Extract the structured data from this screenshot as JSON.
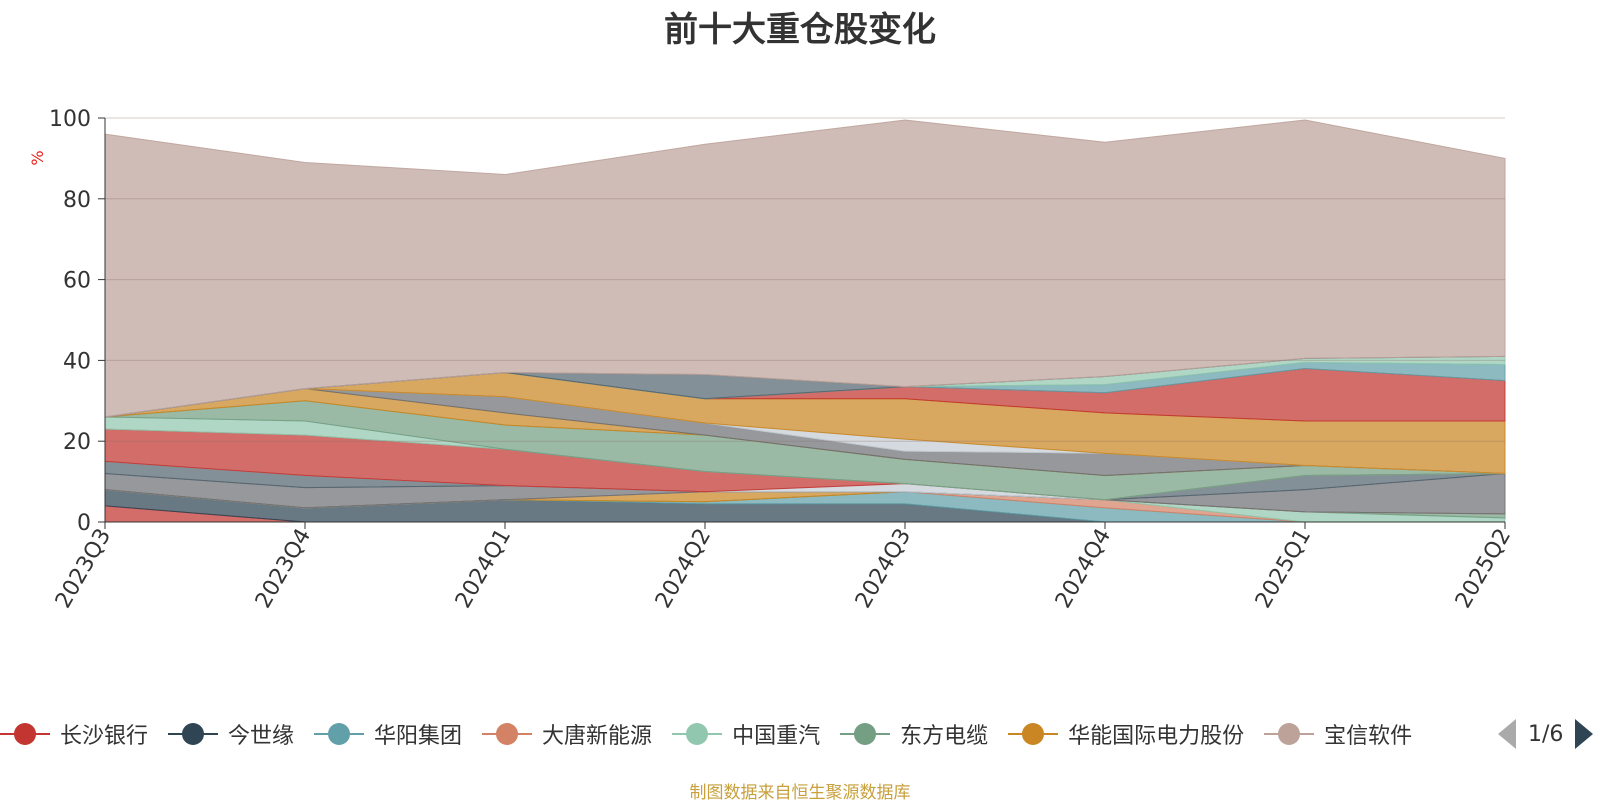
{
  "chart_data": {
    "type": "area",
    "stacked": true,
    "title": "前十大重仓股变化",
    "ylabel": "%",
    "ylim": [
      0,
      100
    ],
    "yticks": [
      0,
      20,
      40,
      60,
      80,
      100
    ],
    "x": [
      "2023Q3",
      "2023Q4",
      "2024Q1",
      "2024Q2",
      "2024Q3",
      "2024Q4",
      "2025Q1",
      "2025Q2"
    ],
    "series": [
      {
        "name": "长沙银行",
        "color": "#c23531",
        "values": [
          4,
          0,
          0,
          0,
          0,
          0,
          0,
          0
        ]
      },
      {
        "name": "今世缘",
        "color": "#2f4554",
        "values": [
          4,
          3.5,
          5.5,
          4.5,
          4.5,
          0,
          0,
          0
        ]
      },
      {
        "name": "华阳集团",
        "color": "#61a0a8",
        "values": [
          0,
          0,
          0,
          0.5,
          3,
          3.5,
          0,
          0
        ]
      },
      {
        "name": "大唐新能源",
        "color": "#d48265",
        "values": [
          0,
          0,
          0,
          0,
          0,
          2,
          0,
          0
        ]
      },
      {
        "name": "中国重汽",
        "color": "#91c7ae",
        "values": [
          0,
          0,
          0,
          0,
          0,
          0,
          2.5,
          1
        ]
      },
      {
        "name": "东方电缆",
        "color": "#749f83",
        "values": [
          0,
          0,
          0,
          0,
          0,
          0,
          0,
          1
        ]
      },
      {
        "name": "华能国际电力股份",
        "color": "#ca8622",
        "values": [
          0,
          0,
          0,
          2.5,
          0,
          0,
          0,
          0
        ]
      },
      {
        "name": "宝信软件",
        "color": "#bda29a",
        "values": [
          0,
          0,
          0,
          0,
          0,
          0,
          0,
          0
        ]
      },
      {
        "name": "",
        "color": "#6e7074",
        "values": [
          4,
          5,
          3.5,
          0,
          0,
          0,
          5.5,
          10
        ]
      },
      {
        "name": "",
        "color": "#546570",
        "values": [
          3,
          3,
          0,
          0,
          0,
          0,
          3.5,
          0
        ]
      },
      {
        "name": "",
        "color": "#c4ccd3",
        "values": [
          0,
          0,
          0,
          0,
          2,
          0,
          0,
          0
        ]
      },
      {
        "name": "",
        "color": "#c23531",
        "values": [
          8,
          10,
          9,
          5,
          0,
          0,
          0,
          0
        ]
      },
      {
        "name": "",
        "color": "#91c7ae",
        "values": [
          3,
          3.5,
          0,
          0,
          0,
          0,
          0,
          0
        ]
      },
      {
        "name": "",
        "color": "#749f83",
        "values": [
          0,
          5,
          6,
          9,
          6,
          6,
          2.5,
          0
        ]
      },
      {
        "name": "",
        "color": "#ca8622",
        "values": [
          0,
          3,
          3,
          0,
          0,
          0,
          0,
          0
        ]
      },
      {
        "name": "",
        "color": "#6e7074",
        "values": [
          0,
          0,
          4,
          3,
          2,
          5.5,
          0,
          0
        ]
      },
      {
        "name": "",
        "color": "#c4ccd3",
        "values": [
          0,
          0,
          0,
          0,
          3,
          0,
          0,
          0
        ]
      },
      {
        "name": "",
        "color": "#ca8622",
        "values": [
          0,
          0,
          6,
          6,
          10,
          10,
          11,
          13
        ]
      },
      {
        "name": "",
        "color": "#c23531",
        "values": [
          0,
          0,
          0,
          0,
          3,
          5,
          13,
          10
        ]
      },
      {
        "name": "",
        "color": "#61a0a8",
        "values": [
          0,
          0,
          0,
          0,
          0,
          2,
          1.5,
          4
        ]
      },
      {
        "name": "",
        "color": "#91c7ae",
        "values": [
          0,
          0,
          0,
          0,
          0,
          2,
          1,
          2
        ]
      },
      {
        "name": "",
        "color": "#546570",
        "values": [
          0,
          0,
          0,
          6,
          0,
          0,
          0,
          0
        ]
      },
      {
        "name": "",
        "color": "#bda29a",
        "values": [
          70,
          56,
          49,
          57,
          66,
          58,
          59,
          49
        ]
      }
    ]
  },
  "legend": {
    "items": [
      {
        "label": "长沙银行",
        "color": "#c23531"
      },
      {
        "label": "今世缘",
        "color": "#2f4554"
      },
      {
        "label": "华阳集团",
        "color": "#61a0a8"
      },
      {
        "label": "大唐新能源",
        "color": "#d48265"
      },
      {
        "label": "中国重汽",
        "color": "#91c7ae"
      },
      {
        "label": "东方电缆",
        "color": "#749f83"
      },
      {
        "label": "华能国际电力股份",
        "color": "#ca8622"
      },
      {
        "label": "宝信软件",
        "color": "#bda29a"
      }
    ],
    "page_indicator": "1/6"
  },
  "source_note": "制图数据来自恒生聚源数据库"
}
